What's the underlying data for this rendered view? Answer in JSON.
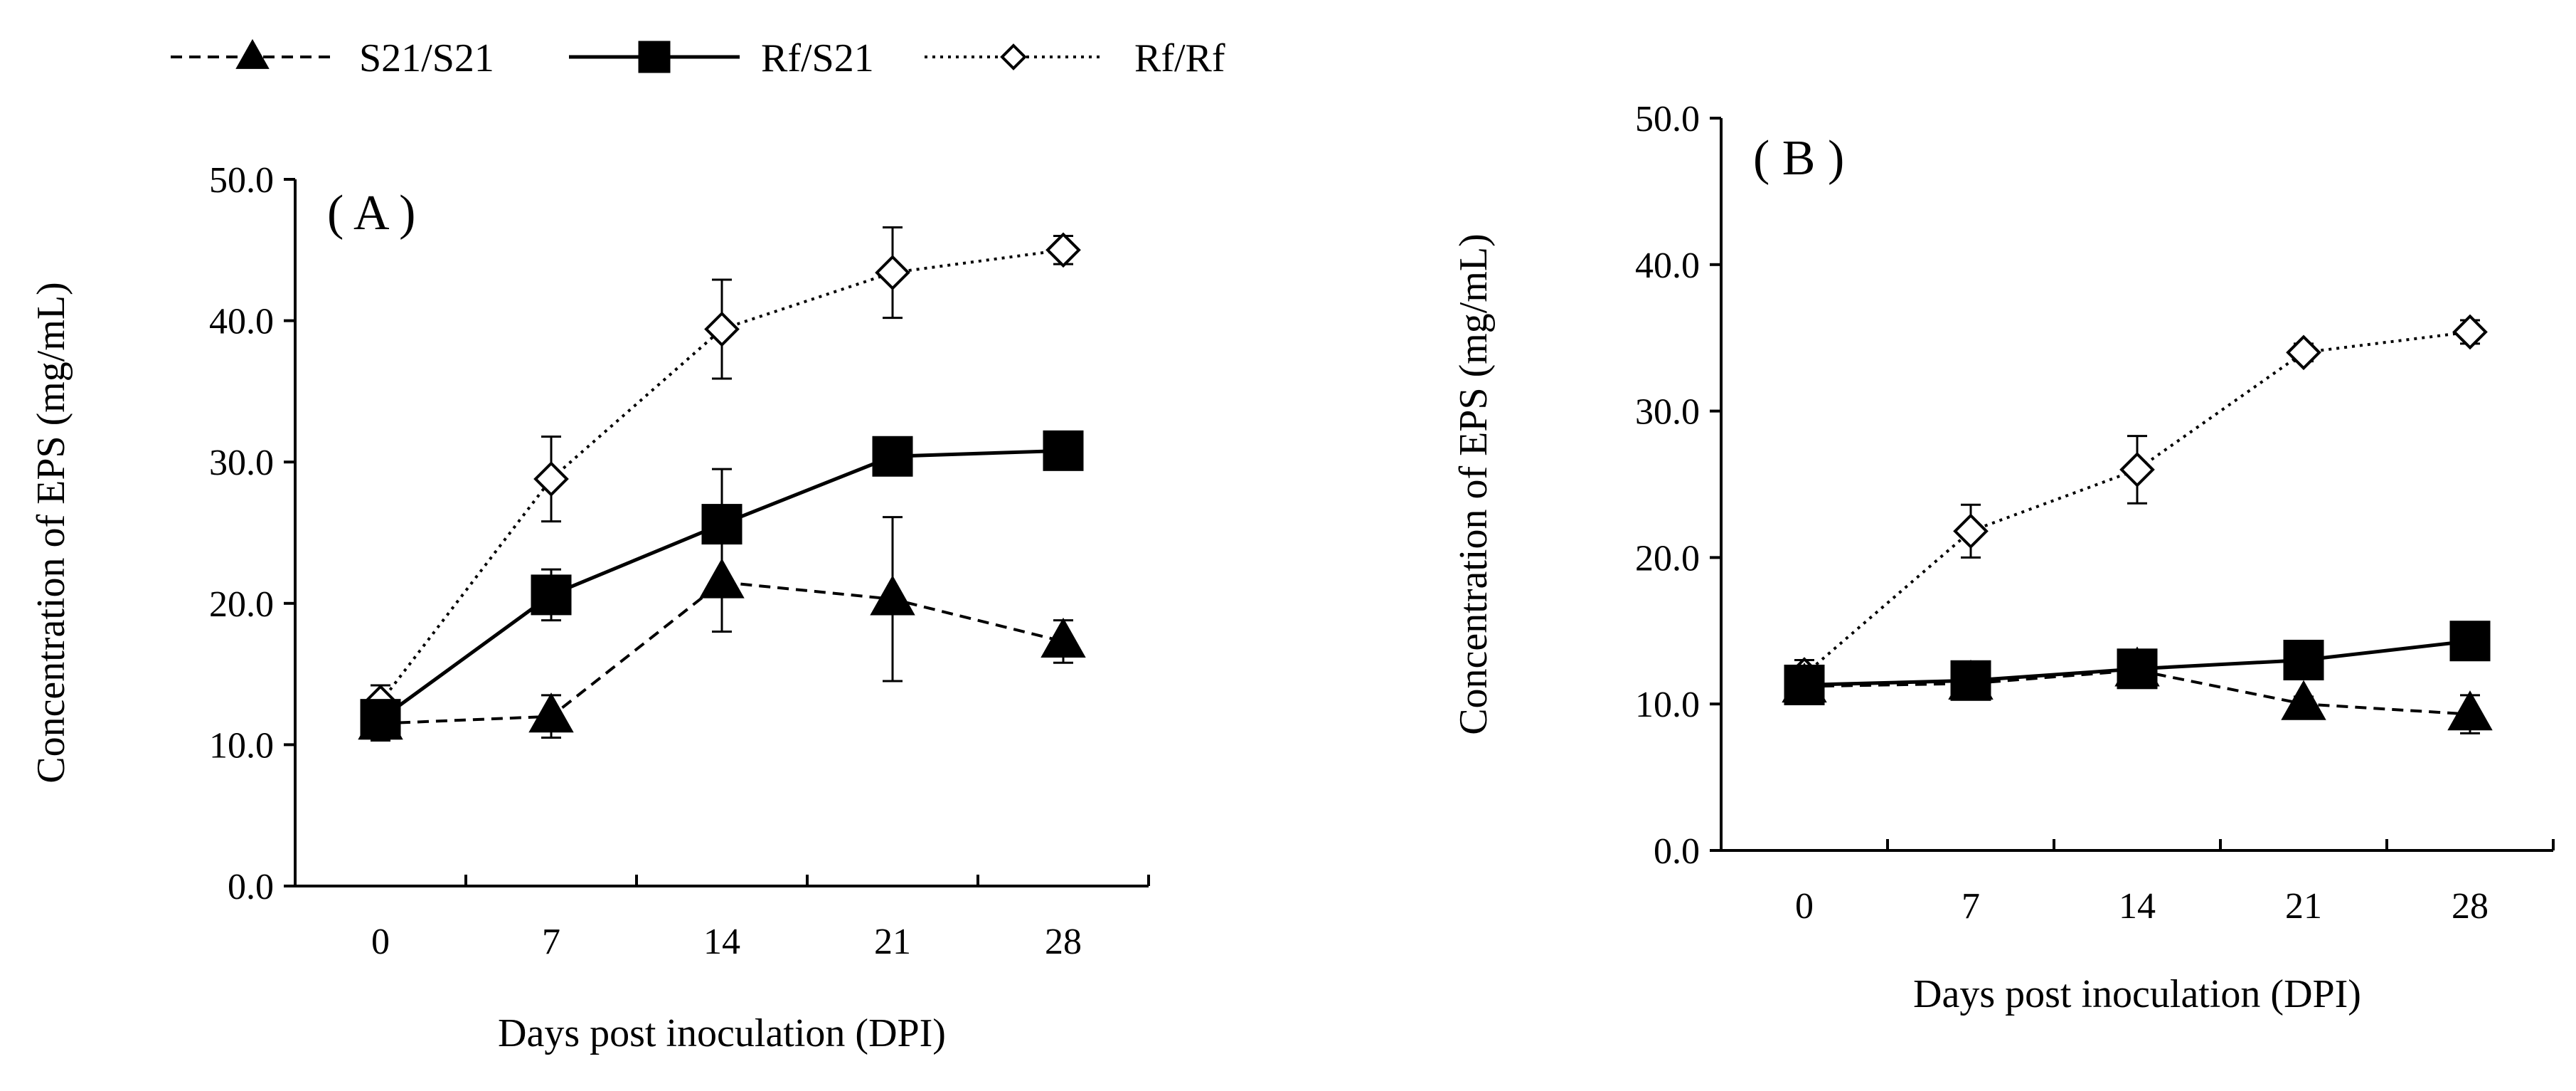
{
  "legend": [
    {
      "label": "S21/S21",
      "marker": "triangle",
      "line": "dashed"
    },
    {
      "label": "Rf/S21",
      "marker": "square",
      "line": "solid"
    },
    {
      "label": "Rf/Rf",
      "marker": "diamond-open",
      "line": "dotted"
    }
  ],
  "colors": {
    "ink": "#000000",
    "background": "#ffffff"
  },
  "chart_data": [
    {
      "type": "line",
      "panel_label": "( A )",
      "categories": [
        "0",
        "7",
        "14",
        "21",
        "28"
      ],
      "xlabel": "Days post inoculation (DPI)",
      "ylabel": "Concentration of EPS (mg/mL)",
      "ylim": [
        0,
        50
      ],
      "yticks": [
        "0.0",
        "10.0",
        "20.0",
        "30.0",
        "40.0",
        "50.0"
      ],
      "grid": false,
      "series": [
        {
          "name": "S21/S21",
          "values": [
            11.5,
            12.0,
            21.5,
            20.3,
            17.3
          ],
          "errors": [
            1.2,
            1.5,
            3.5,
            5.8,
            1.5
          ]
        },
        {
          "name": "Rf/S21",
          "values": [
            11.8,
            20.6,
            25.6,
            30.4,
            30.8
          ],
          "errors": [
            1.0,
            1.8,
            3.9,
            0.8,
            0.6
          ]
        },
        {
          "name": "Rf/Rf",
          "values": [
            13.0,
            28.8,
            39.4,
            43.4,
            45.0
          ],
          "errors": [
            1.2,
            3.0,
            3.5,
            3.2,
            1.0
          ]
        }
      ]
    },
    {
      "type": "line",
      "panel_label": "( B )",
      "categories": [
        "0",
        "7",
        "14",
        "21",
        "28"
      ],
      "xlabel": "Days post inoculation (DPI)",
      "ylabel": "Concentration of EPS (mg/mL)",
      "ylim": [
        0,
        50
      ],
      "yticks": [
        "0.0",
        "10.0",
        "20.0",
        "30.0",
        "40.0",
        "50.0"
      ],
      "grid": false,
      "series": [
        {
          "name": "S21/S21",
          "values": [
            11.2,
            11.4,
            12.3,
            10.0,
            9.3
          ],
          "errors": [
            0.8,
            0.5,
            0.6,
            0.5,
            1.3
          ]
        },
        {
          "name": "Rf/S21",
          "values": [
            11.3,
            11.6,
            12.4,
            13.0,
            14.3
          ],
          "errors": [
            0.6,
            0.5,
            0.6,
            0.6,
            0.6
          ]
        },
        {
          "name": "Rf/Rf",
          "values": [
            12.0,
            21.8,
            26.0,
            34.0,
            35.4
          ],
          "errors": [
            1.0,
            1.8,
            2.3,
            0.6,
            0.8
          ]
        }
      ]
    }
  ]
}
